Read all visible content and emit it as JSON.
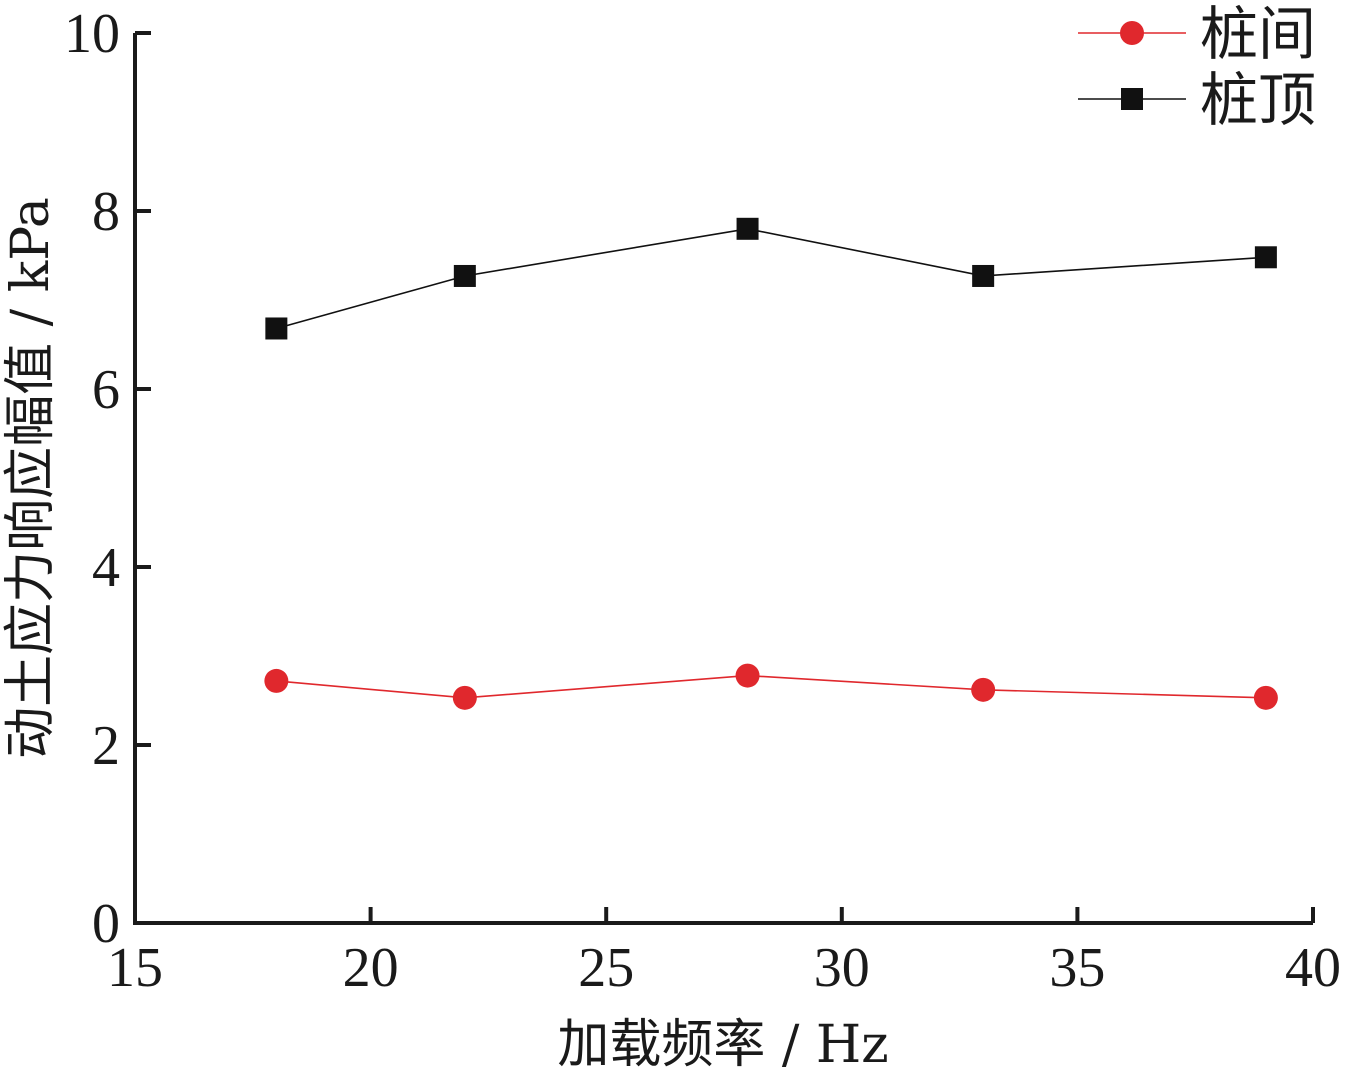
{
  "chart_data": {
    "type": "line",
    "title": "",
    "xlabel": "加载频率 / Hz",
    "ylabel": "动土应力响应幅值 / kPa",
    "xlim": [
      15,
      40
    ],
    "ylim": [
      0,
      10
    ],
    "xticks": [
      15,
      20,
      25,
      30,
      35,
      40
    ],
    "yticks": [
      0,
      2,
      4,
      6,
      8,
      10
    ],
    "grid": false,
    "legend_position": "top-right",
    "series": [
      {
        "name": "桩间",
        "marker": "circle",
        "color": "#e0282d",
        "x": [
          18,
          22,
          28,
          33,
          39
        ],
        "y": [
          2.72,
          2.53,
          2.78,
          2.62,
          2.53
        ]
      },
      {
        "name": "桩顶",
        "marker": "square",
        "color": "#111111",
        "x": [
          18,
          22,
          28,
          33,
          39
        ],
        "y": [
          6.68,
          7.27,
          7.8,
          7.27,
          7.48
        ]
      }
    ]
  }
}
